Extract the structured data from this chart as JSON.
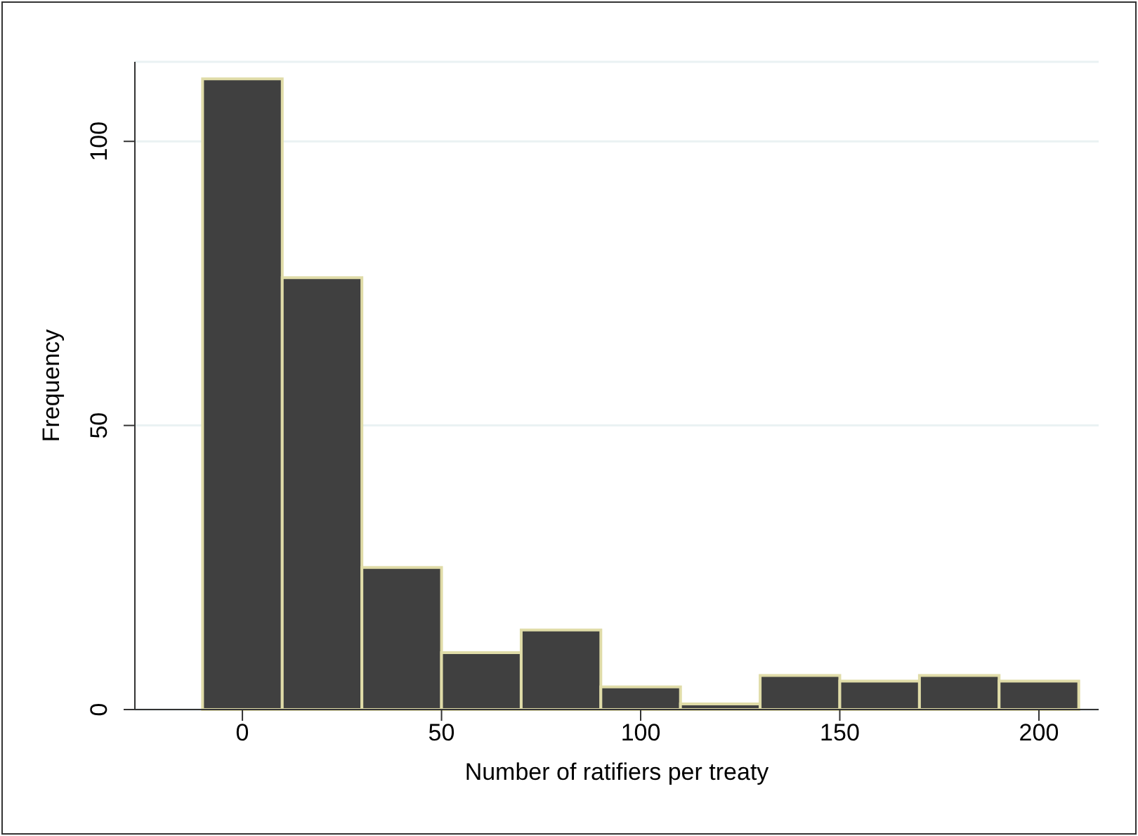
{
  "chart_data": {
    "type": "histogram",
    "xlabel": "Number of ratifiers per treaty",
    "ylabel": "Frequency",
    "bins": [
      -10,
      10,
      30,
      50,
      70,
      90,
      110,
      130,
      150,
      170,
      190,
      210
    ],
    "values": [
      111,
      76,
      25,
      10,
      14,
      4,
      1,
      6,
      5,
      6,
      5
    ],
    "color": "#404040",
    "xlim": [
      -27,
      215
    ],
    "xticks": [
      0,
      50,
      100,
      150,
      200
    ],
    "ylim": [
      0,
      114
    ],
    "yticks": [
      0,
      50,
      100
    ],
    "grid": "y"
  }
}
